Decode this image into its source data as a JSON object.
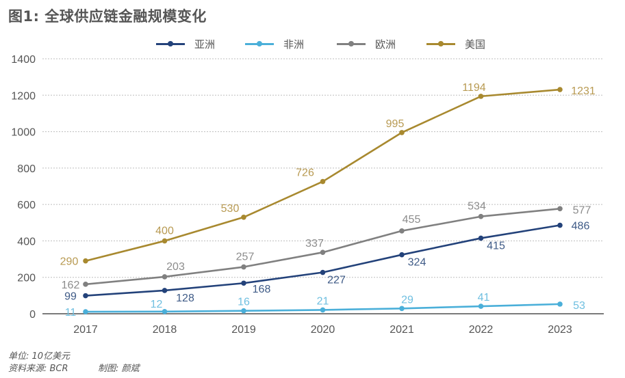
{
  "title": "图1: 全球供应链金融规模变化",
  "footnotes": {
    "unit": "单位: 10亿美元",
    "source": "资料来源: BCR",
    "maker": "制图: 颜斌"
  },
  "chart_data": {
    "type": "line",
    "title": "图1: 全球供应链金融规模变化",
    "xlabel": "",
    "ylabel": "",
    "unit": "10亿美元",
    "x": [
      "2017",
      "2018",
      "2019",
      "2020",
      "2021",
      "2022",
      "2023"
    ],
    "ylim": [
      0,
      1400
    ],
    "yticks": [
      0,
      200,
      400,
      600,
      800,
      1000,
      1200,
      1400
    ],
    "grid": true,
    "legend_position": "top-center",
    "series": [
      {
        "name": "亚洲",
        "color": "#23427a",
        "values": [
          99,
          128,
          168,
          227,
          324,
          415,
          486
        ]
      },
      {
        "name": "非洲",
        "color": "#4aafd9",
        "values": [
          11,
          12,
          16,
          21,
          29,
          41,
          53
        ]
      },
      {
        "name": "欧洲",
        "color": "#808080",
        "values": [
          162,
          203,
          257,
          337,
          455,
          534,
          577
        ]
      },
      {
        "name": "美国",
        "color": "#a8892f",
        "values": [
          290,
          400,
          530,
          726,
          995,
          1194,
          1231
        ]
      }
    ]
  }
}
